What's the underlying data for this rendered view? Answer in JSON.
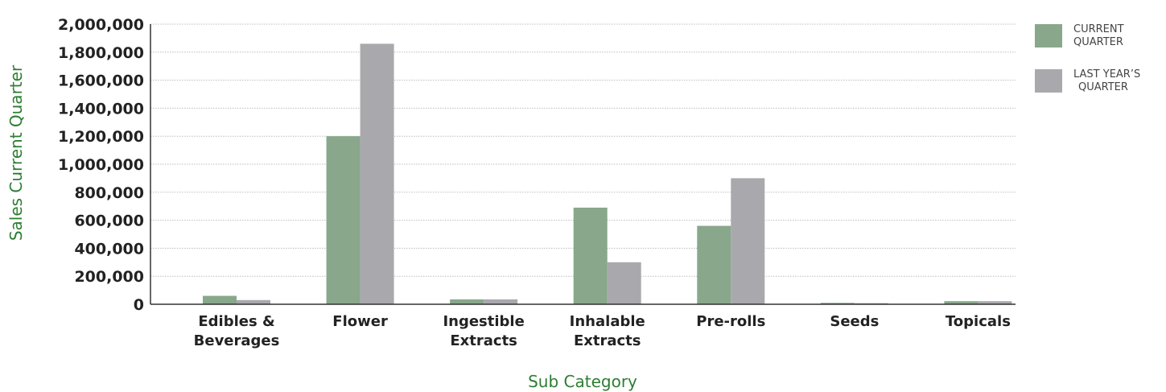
{
  "chart_data": {
    "type": "bar",
    "categories": [
      [
        "Edibles &",
        "Beverages"
      ],
      [
        "Flower"
      ],
      [
        "Ingestible",
        "Extracts"
      ],
      [
        "Inhalable",
        "Extracts"
      ],
      [
        "Pre-rolls"
      ],
      [
        "Seeds"
      ],
      [
        "Topicals"
      ]
    ],
    "series": [
      {
        "name": [
          "CURRENT",
          "QUARTER"
        ],
        "color": "#88a78b",
        "values": [
          60000,
          1200000,
          35000,
          690000,
          560000,
          10000,
          22000
        ]
      },
      {
        "name": [
          "LAST YEAR’S",
          "QUARTER"
        ],
        "color": "#a9a9ad",
        "values": [
          30000,
          1860000,
          35000,
          300000,
          900000,
          8000,
          22000
        ]
      }
    ],
    "yticks": [
      "0",
      "200,000",
      "400,000",
      "600,000",
      "800,000",
      "1,000,000",
      "1,200,000",
      "1,400,000",
      "1,600,000",
      "1,800,000",
      "2,000,000"
    ],
    "ylim": [
      0,
      2000000
    ],
    "xlabel": "Sub Category",
    "ylabel": "Sales Current Quarter",
    "grid": true,
    "legend_position": "top-right"
  }
}
